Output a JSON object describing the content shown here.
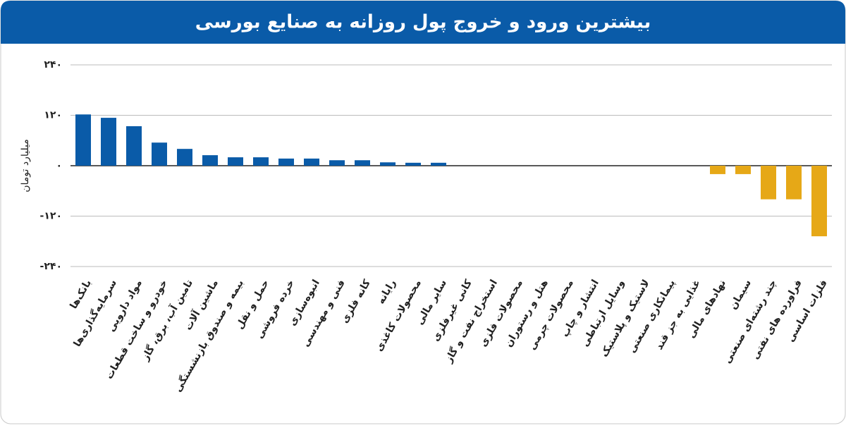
{
  "chart_data": {
    "type": "bar",
    "title": "بیشترین ورود و خروج پول روزانه به صنایع بورسی",
    "y_label": "میلیارد تومان",
    "categories": [
      "بانک‌ها",
      "سرمایه‌گذاری‌ها",
      "مواد دارویی",
      "خودرو و ساخت قطعات",
      "تامین آب، برق، گاز",
      "ماشین آلات",
      "بیمه و صندوق بازنشستگی",
      "حمل و نقل",
      "خرده فروشی",
      "انبوه‌سازی",
      "فنی و مهندسی",
      "کانه فلزی",
      "رایانه",
      "محصولات کاغذی",
      "سایر مالی",
      "کانی غیرفلزی",
      "استخراج نفت و گاز",
      "محصولات فلزی",
      "هتل و رستوران",
      "محصولات چرمی",
      "انتشار و چاپ",
      "وسایل ارتباطی",
      "لاستیک و پلاستیک",
      "پیمانکاری صنعتی",
      "غذایی به جز قند",
      "نهادهای مالی",
      "سیمان",
      "چند رشته‌ای صنعتی",
      "فراورده های نفتی",
      "فلزات اساسی"
    ],
    "values": [
      122,
      114,
      94,
      55,
      40,
      25,
      20,
      20,
      17,
      17,
      13,
      13,
      8,
      7,
      7,
      0,
      0,
      0,
      0,
      0,
      0,
      0,
      0,
      0,
      0,
      -20,
      -20,
      -80,
      -80,
      -168
    ],
    "colors": {
      "positive": "#0a5ba8",
      "negative": "#e6a817"
    },
    "ylim": [
      -240,
      240
    ],
    "yticks": [
      {
        "value": 240,
        "label": "۲۴۰"
      },
      {
        "value": 120,
        "label": "۱۲۰"
      },
      {
        "value": 0,
        "label": "۰"
      },
      {
        "value": -120,
        "label": "-۱۲۰"
      },
      {
        "value": -240,
        "label": "-۲۴۰"
      }
    ],
    "grid": true
  }
}
